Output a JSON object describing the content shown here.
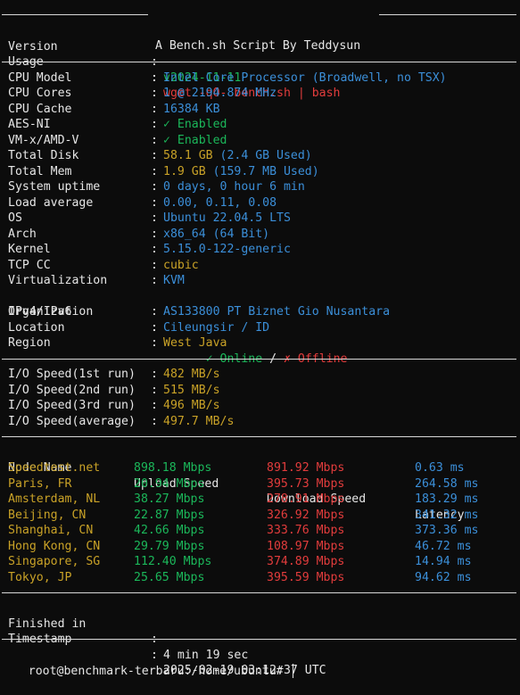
{
  "header": {
    "title": " A Bench.sh Script By Teddysun ",
    "version_label": "Version",
    "version_value": "v2024-11-11",
    "usage_label": "Usage",
    "usage_value": "wget -qO- bench.sh | bash"
  },
  "system": [
    {
      "label": "CPU Model",
      "value": "Intel Core Processor (Broadwell, no TSX)",
      "color": "#3b8fd9"
    },
    {
      "label": "CPU Cores",
      "value": "1 @ 2194.874 MHz",
      "color": "#3b8fd9"
    },
    {
      "label": "CPU Cache",
      "value": "16384 KB",
      "color": "#3b8fd9"
    },
    {
      "label": "AES-NI",
      "value": "✓ Enabled",
      "color": "#1bb75a"
    },
    {
      "label": "VM-x/AMD-V",
      "value": "✓ Enabled",
      "color": "#1bb75a"
    },
    {
      "label": "Total Disk",
      "value": "58.1 GB (2.4 GB Used)",
      "color": "#c9a227",
      "extra_color": "#3b8fd9"
    },
    {
      "label": "Total Mem",
      "value": "1.9 GB (159.7 MB Used)",
      "color": "#c9a227",
      "extra_color": "#3b8fd9"
    },
    {
      "label": "System uptime",
      "value": "0 days, 0 hour 6 min",
      "color": "#3b8fd9"
    },
    {
      "label": "Load average",
      "value": "0.00, 0.11, 0.08",
      "color": "#3b8fd9"
    },
    {
      "label": "OS",
      "value": "Ubuntu 22.04.5 LTS",
      "color": "#3b8fd9"
    },
    {
      "label": "Arch",
      "value": "x86_64 (64 Bit)",
      "color": "#3b8fd9"
    },
    {
      "label": "Kernel",
      "value": "5.15.0-122-generic",
      "color": "#3b8fd9"
    },
    {
      "label": "TCP CC",
      "value": "cubic",
      "color": "#c9a227"
    },
    {
      "label": "Virtualization",
      "value": "KVM",
      "color": "#3b8fd9"
    }
  ],
  "ipv": {
    "label": "IPv4/IPv6",
    "online": "✓ Online",
    "slash": " / ",
    "offline": "✗ Offline"
  },
  "system2": [
    {
      "label": "Organization",
      "value": "AS133800 PT Biznet Gio Nusantara",
      "color": "#3b8fd9"
    },
    {
      "label": "Location",
      "value": "Cileungsir / ID",
      "color": "#3b8fd9"
    },
    {
      "label": "Region",
      "value": "West Java",
      "color": "#c9a227"
    }
  ],
  "io": [
    {
      "label": "I/O Speed(1st run)",
      "value": "482 MB/s"
    },
    {
      "label": "I/O Speed(2nd run)",
      "value": "515 MB/s"
    },
    {
      "label": "I/O Speed(3rd run)",
      "value": "496 MB/s"
    },
    {
      "label": "I/O Speed(average)",
      "value": "497.7 MB/s"
    }
  ],
  "speed_headers": [
    "Node Name",
    "Upload Speed",
    "Download Speed",
    "Latency"
  ],
  "speed_rows": [
    {
      "node": "Speedtest.net",
      "up": "898.18 Mbps",
      "down": "891.92 Mbps",
      "lat": "0.63 ms"
    },
    {
      "node": "Paris, FR",
      "up": "20.94 Mbps",
      "down": "395.73 Mbps",
      "lat": "264.58 ms"
    },
    {
      "node": "Amsterdam, NL",
      "up": "38.27 Mbps",
      "down": "278.91 Mbps",
      "lat": "183.29 ms"
    },
    {
      "node": "Beijing, CN",
      "up": "22.87 Mbps",
      "down": "326.92 Mbps",
      "lat": "341.32 ms"
    },
    {
      "node": "Shanghai, CN",
      "up": "42.66 Mbps",
      "down": "333.76 Mbps",
      "lat": "373.36 ms"
    },
    {
      "node": "Hong Kong, CN",
      "up": "29.79 Mbps",
      "down": "108.97 Mbps",
      "lat": "46.72 ms"
    },
    {
      "node": "Singapore, SG",
      "up": "112.40 Mbps",
      "down": "374.89 Mbps",
      "lat": "14.94 ms"
    },
    {
      "node": "Tokyo, JP",
      "up": "25.65 Mbps",
      "down": "395.59 Mbps",
      "lat": "94.62 ms"
    }
  ],
  "footer": {
    "finished_label": "Finished in",
    "finished_value": "4 min 19 sec",
    "timestamp_label": "Timestamp",
    "timestamp_value": "2025-02-19 03:12:37 UTC"
  },
  "prompt": "root@benchmark-terbaru:/home/ubuntu# ",
  "colors": {
    "background": "#0c0c0c",
    "text": "#e6e6e6",
    "red": "#e23c3c",
    "blue": "#3b8fd9",
    "green": "#1bb75a",
    "yellow": "#c9a227"
  }
}
